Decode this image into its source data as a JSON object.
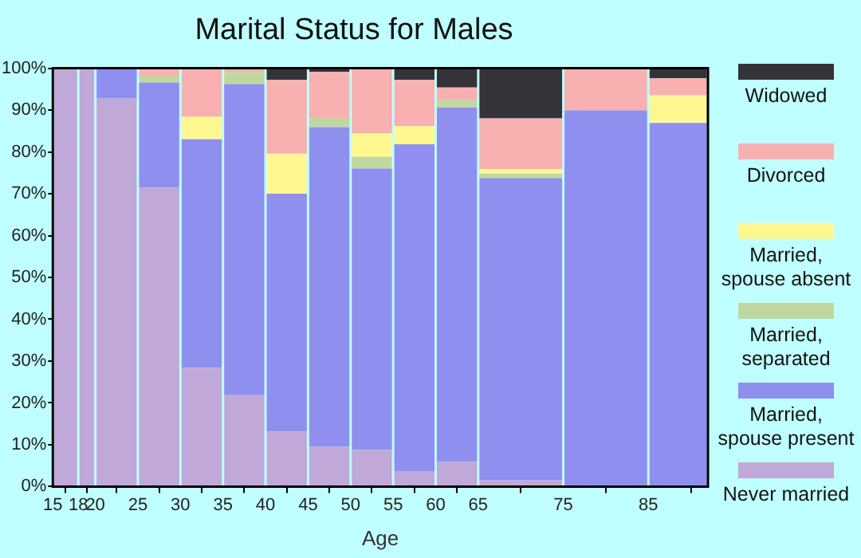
{
  "chart_data": {
    "type": "bar",
    "stacked": true,
    "title": "Marital Status for Males",
    "xlabel": "Age",
    "x": [
      16.5,
      19,
      22.5,
      27.5,
      32.5,
      37.5,
      42.5,
      47.5,
      52.5,
      57.5,
      62.5,
      70,
      80,
      88.5
    ],
    "xlim": [
      15,
      92
    ],
    "xticks": [
      15,
      18,
      20,
      25,
      30,
      35,
      40,
      45,
      50,
      55,
      60,
      65,
      75,
      85
    ],
    "ylim": [
      0,
      100
    ],
    "yticks": [
      {
        "value": 0,
        "label": "0%"
      },
      {
        "value": 10,
        "label": "10%"
      },
      {
        "value": 20,
        "label": "20%"
      },
      {
        "value": 30,
        "label": "30%"
      },
      {
        "value": 40,
        "label": "40%"
      },
      {
        "value": 50,
        "label": "50%"
      },
      {
        "value": 60,
        "label": "60%"
      },
      {
        "value": 70,
        "label": "70%"
      },
      {
        "value": 80,
        "label": "80%"
      },
      {
        "value": 90,
        "label": "90%"
      },
      {
        "value": 100,
        "label": "100%"
      }
    ],
    "grid": false,
    "legend": "right",
    "series": [
      {
        "name": "Never married",
        "color": "#c0a8d8",
        "values": [
          100,
          100,
          92.8,
          71.5,
          28.4,
          22.0,
          13.2,
          9.5,
          8.8,
          3.7,
          5.9,
          1.5,
          0,
          0
        ]
      },
      {
        "name": "Married, spouse present",
        "color": "#8f8ff0",
        "values": [
          0,
          0,
          7.2,
          25.1,
          54.6,
          74.2,
          56.8,
          76.4,
          67.2,
          78.1,
          84.7,
          72.2,
          89.9,
          86.9
        ]
      },
      {
        "name": "Married, separated",
        "color": "#c0d8a0",
        "values": [
          0,
          0,
          0,
          1.6,
          0,
          2.9,
          0,
          2.2,
          2.8,
          0,
          1.8,
          1.1,
          0,
          0
        ]
      },
      {
        "name": "Married, spouse absent",
        "color": "#fff890",
        "values": [
          0,
          0,
          0,
          0,
          5.4,
          0,
          9.6,
          0,
          5.6,
          4.4,
          0,
          1.1,
          0,
          6.6
        ]
      },
      {
        "name": "Divorced",
        "color": "#f8b0b0",
        "values": [
          0,
          0,
          0,
          1.8,
          11.6,
          0.9,
          17.6,
          11.0,
          15.6,
          11.0,
          3.0,
          12.1,
          10.1,
          4.1
        ]
      },
      {
        "name": "Widowed",
        "color": "#333338",
        "values": [
          0,
          0,
          0,
          0,
          0,
          0,
          2.8,
          0.9,
          0,
          2.8,
          4.6,
          12.0,
          0,
          2.4
        ]
      }
    ]
  }
}
